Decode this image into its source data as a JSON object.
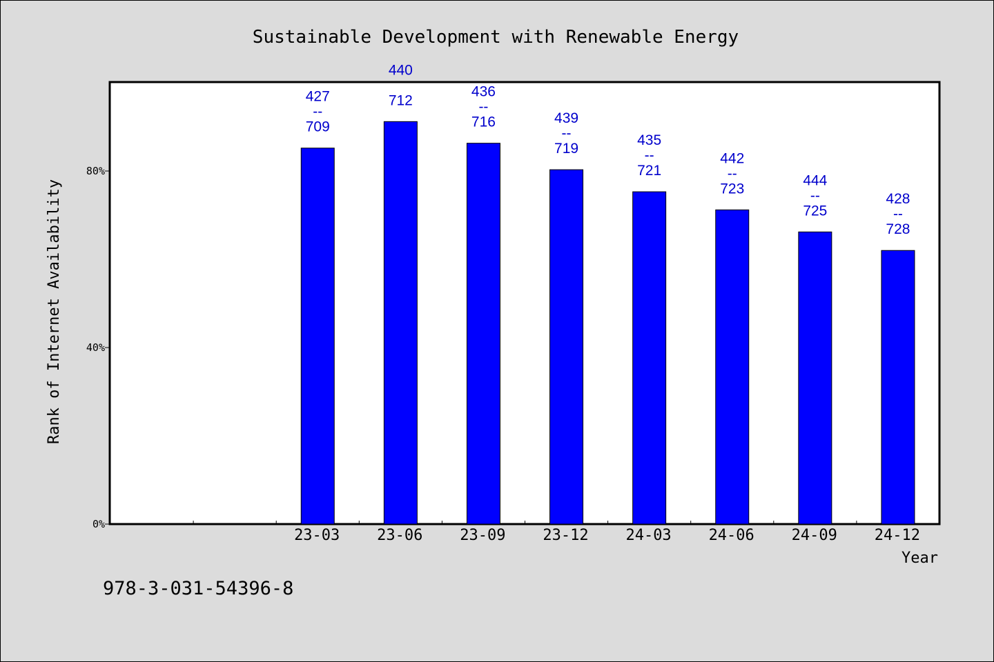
{
  "chart_data": {
    "type": "bar",
    "title": "Sustainable Development with Renewable Energy",
    "xlabel": "Year",
    "ylabel": "Rank of Internet Availability",
    "ylim": [
      0,
      100
    ],
    "yticks": [
      {
        "value": 0,
        "label": "0%"
      },
      {
        "value": 40,
        "label": "40%"
      },
      {
        "value": 80,
        "label": "80%"
      }
    ],
    "x_slots": [
      "",
      "",
      "23-03",
      "23-06",
      "23-09",
      "23-12",
      "24-03",
      "24-06",
      "24-09",
      "24-12"
    ],
    "categories": [
      "23-03",
      "23-06",
      "23-09",
      "23-12",
      "24-03",
      "24-06",
      "24-09",
      "24-12"
    ],
    "values": [
      85.2,
      91.2,
      86.3,
      80.3,
      75.3,
      71.2,
      66.2,
      62.0
    ],
    "labels": [
      {
        "top": "427",
        "sep": "--",
        "bottom": "709"
      },
      {
        "top": "440",
        "sep": "",
        "bottom": "712"
      },
      {
        "top": "436",
        "sep": "--",
        "bottom": "716"
      },
      {
        "top": "439",
        "sep": "--",
        "bottom": "719"
      },
      {
        "top": "435",
        "sep": "--",
        "bottom": "721"
      },
      {
        "top": "442",
        "sep": "--",
        "bottom": "723"
      },
      {
        "top": "444",
        "sep": "--",
        "bottom": "725"
      },
      {
        "top": "428",
        "sep": "--",
        "bottom": "728"
      }
    ],
    "bar_color": "#0000ff",
    "label_color": "#0000cc",
    "plot_background": "#ffffff",
    "grid": false,
    "legend": "none"
  },
  "footer": {
    "isbn": "978-3-031-54396-8"
  }
}
